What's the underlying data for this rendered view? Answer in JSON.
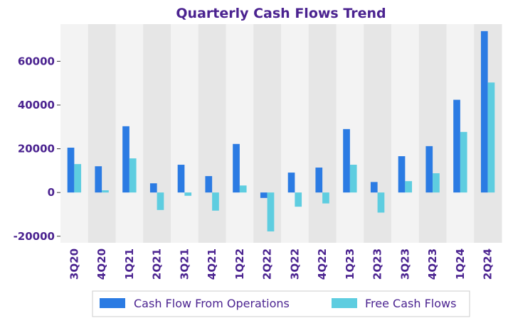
{
  "chart_data": {
    "type": "bar",
    "title": "Quarterly Cash Flows Trend",
    "xlabel": "",
    "ylabel": "",
    "ylim": [
      -23000,
      77000
    ],
    "yticks": [
      -20000,
      0,
      20000,
      40000,
      60000
    ],
    "categories": [
      "3Q20",
      "4Q20",
      "1Q21",
      "2Q21",
      "3Q21",
      "4Q21",
      "1Q22",
      "2Q22",
      "3Q22",
      "4Q22",
      "1Q23",
      "2Q23",
      "3Q23",
      "4Q23",
      "1Q24",
      "2Q24"
    ],
    "series": [
      {
        "name": "Cash Flow From Operations",
        "values": [
          20500,
          12000,
          30300,
          4200,
          12700,
          7500,
          22200,
          -2500,
          9100,
          11400,
          29000,
          4800,
          16600,
          21200,
          42400,
          73800
        ]
      },
      {
        "name": "Free Cash Flows",
        "values": [
          13000,
          1000,
          15600,
          -8000,
          -1500,
          -8300,
          3200,
          -17800,
          -6500,
          -5000,
          12700,
          -9200,
          5200,
          8800,
          27700,
          50300
        ]
      }
    ],
    "legend": "bottom-center",
    "colors": {
      "series0": "#2b7be3",
      "series1": "#5ecde0",
      "band_light": "#f3f3f3",
      "band_dark": "#e6e6e6",
      "text": "#4b2390"
    }
  }
}
